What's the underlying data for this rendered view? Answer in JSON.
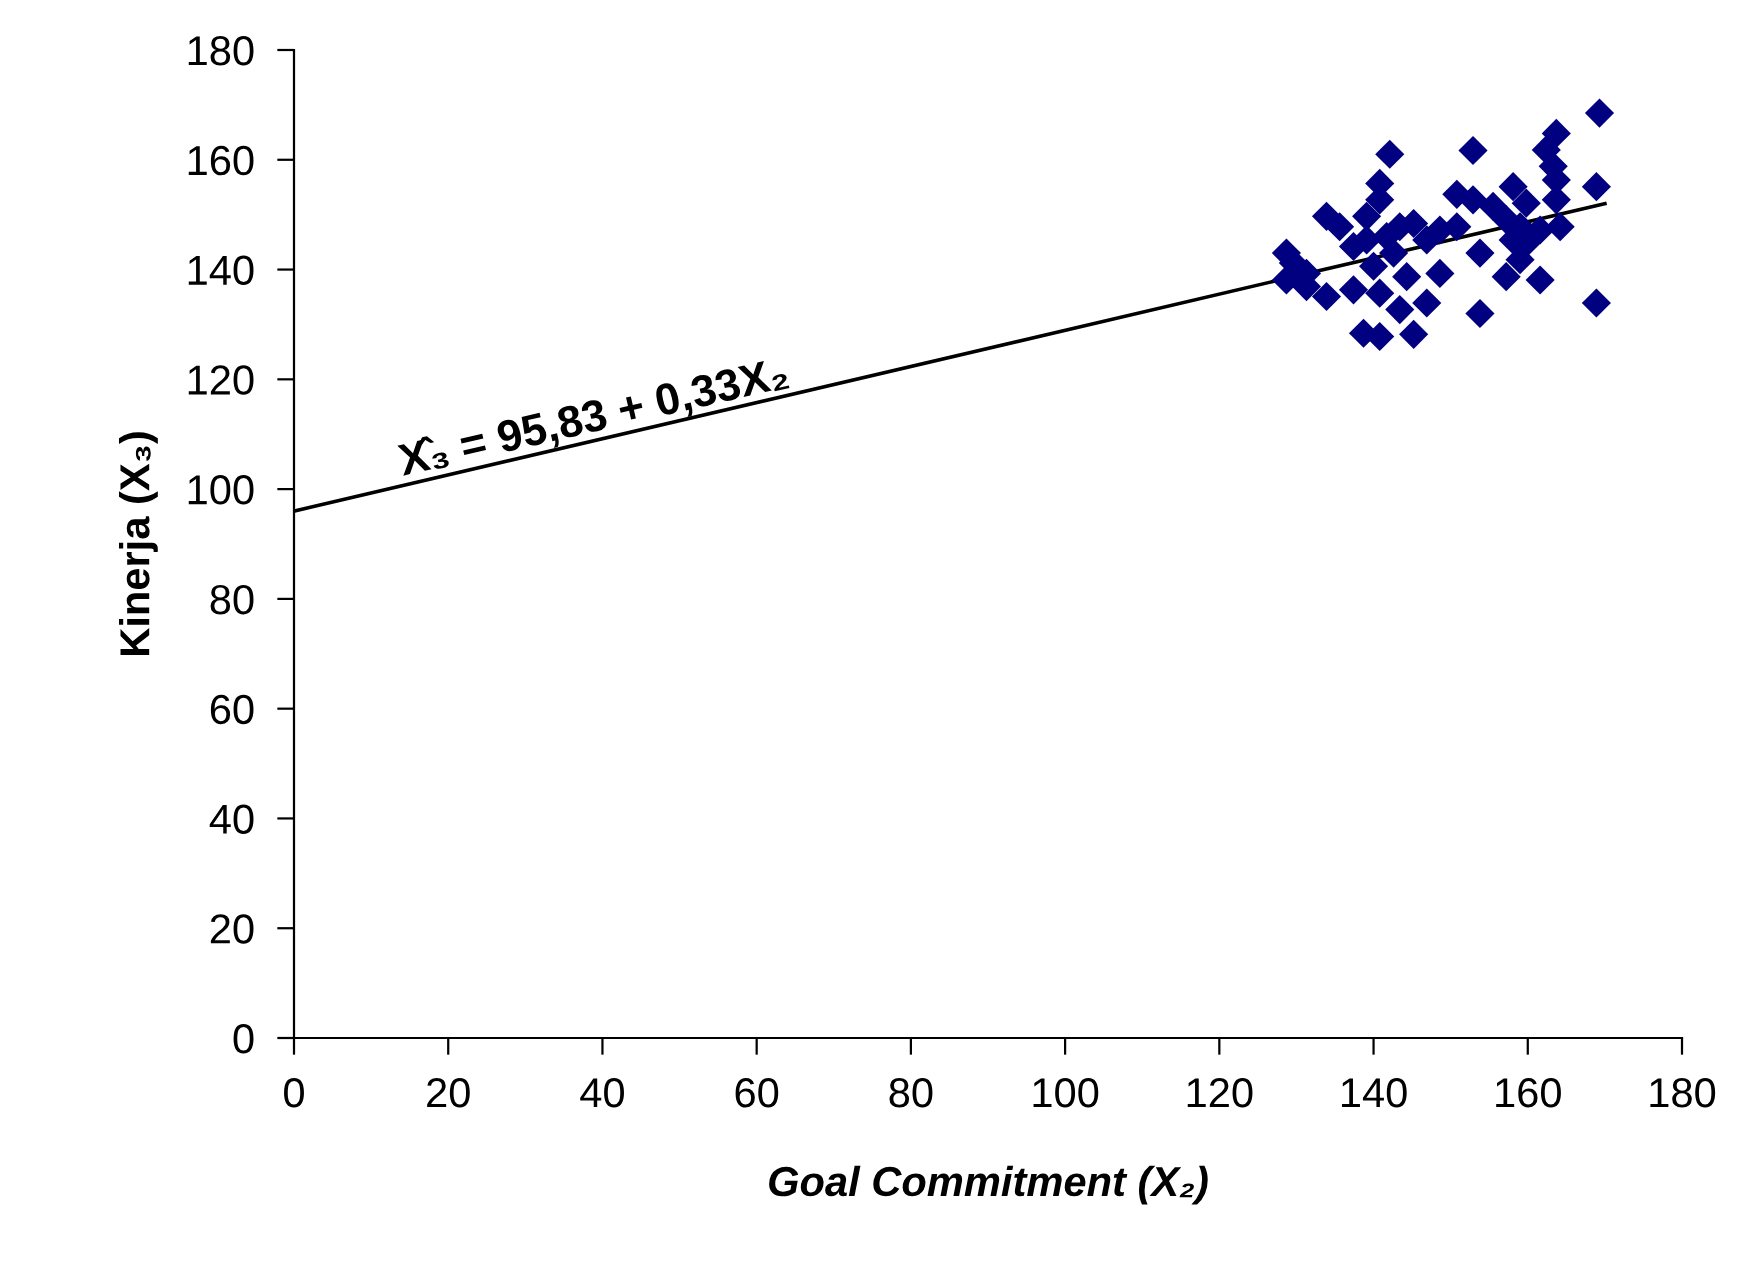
{
  "chart_data": {
    "type": "scatter",
    "xlabel": "Goal Commitment (X₂)",
    "ylabel": "Kinerja (X₃)",
    "xlim": [
      0,
      180
    ],
    "xticks": [
      0,
      20,
      40,
      60,
      80,
      100,
      120,
      140,
      160,
      180
    ],
    "ylim": [
      0,
      180
    ],
    "yticks": [
      0,
      20,
      40,
      60,
      80,
      100,
      120,
      140,
      160,
      180
    ],
    "grid": false,
    "marker": "diamond",
    "annotations": [
      "X̂₃ = 95,83 + 0,33X₂"
    ],
    "series": [
      {
        "color": "#000080",
        "x": [
          142.1,
          152.9,
          163.7,
          162.4,
          163.3,
          163.7,
          168.9,
          140.8,
          150.8,
          152.9,
          158.1,
          159.8,
          163.7,
          133.9,
          135.6,
          139.1,
          140.8,
          143.4,
          145.2,
          148.6,
          150.8,
          155.5,
          157.2,
          159.0,
          161.6,
          164.2,
          128.7,
          129.6,
          131.3,
          133.9,
          137.4,
          140.0,
          142.6,
          146.0,
          148.6,
          153.8,
          157.2,
          159.0,
          161.6,
          168.9,
          153.8,
          146.9,
          143.4,
          140.8,
          138.7,
          140.8,
          145.2,
          128.7,
          131.3,
          137.4,
          144.3,
          141.7,
          139.1,
          146.9,
          158.1,
          159.8,
          169.3
        ],
        "values": [
          161.0,
          161.7,
          164.8,
          161.8,
          158.8,
          156.3,
          155.1,
          155.7,
          153.7,
          152.7,
          155.1,
          152.1,
          152.7,
          149.7,
          147.8,
          149.7,
          152.7,
          147.8,
          148.4,
          147.2,
          147.8,
          151.5,
          149.1,
          147.8,
          147.2,
          147.8,
          143.0,
          141.2,
          139.3,
          135.1,
          136.3,
          140.6,
          143.0,
          null,
          139.3,
          143.0,
          138.7,
          141.8,
          138.1,
          133.9,
          132.0,
          133.9,
          132.7,
          135.7,
          128.4,
          127.8,
          128.2,
          138.1,
          136.9,
          144.2,
          138.7,
          146.0,
          145.4,
          145.4,
          145.4,
          144.8,
          168.5
        ]
      },
      {
        "type": "line",
        "color": "#000000",
        "x": [
          0,
          170
        ],
        "values": [
          96,
          152
        ],
        "marker": "none"
      }
    ]
  }
}
